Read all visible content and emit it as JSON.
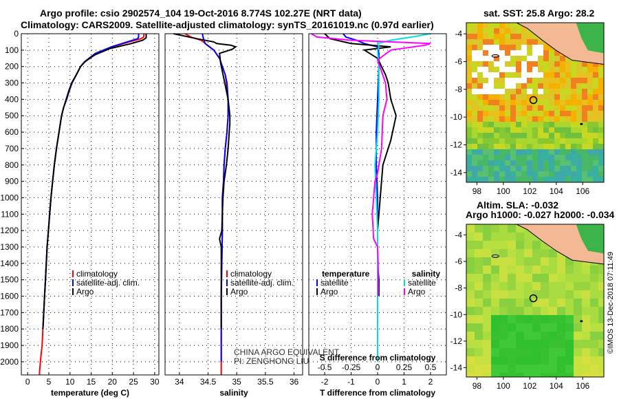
{
  "header": {
    "title_line1": "Argo profile: csio 2902574_104 19-Oct-2016 8.774S 102.27E (NRT data)",
    "title_line2": "Climatology: CARS2009. Satellite-adjusted climatology: synTS_20161019.nc (0.97d earlier)"
  },
  "colors": {
    "climatology": "#ff0000",
    "satellite": "#0000ff",
    "argo": "#000000",
    "satellite_salinity": "#00e0e0",
    "argo_salinity": "#ff00ff",
    "land": "#f2b994",
    "grid": "#000000"
  },
  "chart_data": [
    {
      "type": "line",
      "panel": "temperature",
      "xlabel": "temperature (deg C)",
      "ylabel": "",
      "xlim": [
        -1.5,
        31
      ],
      "ylim": [
        2080,
        0
      ],
      "xticks": [
        0,
        5,
        10,
        15,
        20,
        25,
        30
      ],
      "yticks": [
        0,
        100,
        200,
        300,
        400,
        500,
        600,
        700,
        800,
        900,
        1000,
        1100,
        1200,
        1300,
        1400,
        1500,
        1600,
        1700,
        1800,
        1900,
        2000
      ],
      "grid": true,
      "legend_position": "center-right",
      "series": [
        {
          "name": "climatology",
          "color": "#ff0000",
          "x": [
            27.5,
            27.4,
            26.8,
            24.0,
            20.0,
            16.0,
            13.5,
            12.5,
            11.5,
            10.5,
            9.8,
            9.2,
            8.5,
            8.0,
            7.4,
            6.8,
            6.3,
            5.9,
            5.5,
            5.2,
            4.9,
            4.6,
            4.4,
            4.2,
            4.0,
            3.8,
            3.6,
            3.4,
            3.2,
            3.0,
            2.9,
            2.8,
            2.8
          ],
          "y": [
            0,
            20,
            30,
            50,
            80,
            120,
            170,
            200,
            250,
            300,
            350,
            400,
            450,
            500,
            600,
            700,
            800,
            900,
            1000,
            1100,
            1200,
            1300,
            1400,
            1500,
            1600,
            1700,
            1800,
            1900,
            1950,
            2000,
            2030,
            2060,
            2080
          ]
        },
        {
          "name": "satellite-adj. clim.",
          "color": "#0000ff",
          "x": [
            26.2,
            26.2,
            26.0,
            23.5,
            19.8,
            16.0,
            13.5,
            12.5,
            11.5,
            10.5,
            9.8,
            9.2,
            8.5,
            8.0,
            7.4,
            6.8,
            6.3,
            5.9,
            5.5,
            5.2,
            4.9,
            4.6,
            4.4,
            4.2,
            4.0,
            3.8,
            3.6
          ],
          "y": [
            0,
            20,
            30,
            50,
            80,
            120,
            170,
            200,
            250,
            300,
            350,
            400,
            450,
            500,
            600,
            700,
            800,
            900,
            1000,
            1100,
            1200,
            1300,
            1400,
            1500,
            1600,
            1700,
            1800
          ]
        },
        {
          "name": "Argo",
          "color": "#000000",
          "x": [
            28.0,
            28.0,
            27.2,
            24.5,
            19.5,
            15.8,
            13.6,
            12.5,
            11.5,
            10.4,
            9.7,
            9.1,
            8.5,
            8.0,
            7.4,
            6.8,
            6.3,
            5.9,
            5.5,
            5.2,
            4.9,
            4.6,
            4.4,
            4.2,
            4.0,
            3.8,
            3.6
          ],
          "y": [
            0,
            25,
            40,
            60,
            90,
            130,
            170,
            200,
            250,
            300,
            350,
            400,
            450,
            500,
            600,
            700,
            800,
            900,
            1000,
            1100,
            1200,
            1300,
            1400,
            1500,
            1600,
            1700,
            1800
          ]
        }
      ]
    },
    {
      "type": "line",
      "panel": "salinity",
      "xlabel": "salinity",
      "ylabel": "",
      "xlim": [
        33.75,
        36.15
      ],
      "ylim": [
        2080,
        0
      ],
      "xticks": [
        34,
        34.5,
        35,
        35.5,
        36
      ],
      "yticks": [
        0,
        100,
        200,
        300,
        400,
        500,
        600,
        700,
        800,
        900,
        1000,
        1100,
        1200,
        1300,
        1400,
        1500,
        1600,
        1700,
        1800,
        1900,
        2000
      ],
      "grid": true,
      "legend_position": "center-right",
      "annotations": [
        "CHINA ARGO EQUIVALENT",
        "PI: ZENGHONG LIU"
      ],
      "series": [
        {
          "name": "climatology",
          "color": "#ff0000",
          "x": [
            34.1,
            34.2,
            34.38,
            34.6,
            34.7,
            34.75,
            34.8,
            34.82,
            34.85,
            34.85,
            34.83,
            34.8,
            34.78,
            34.77,
            34.75,
            34.75,
            34.74,
            34.73,
            34.73,
            34.73,
            34.73,
            34.73
          ],
          "y": [
            0,
            20,
            40,
            100,
            150,
            200,
            250,
            300,
            400,
            500,
            600,
            700,
            800,
            900,
            1000,
            1200,
            1400,
            1600,
            1800,
            1900,
            2000,
            2080
          ]
        },
        {
          "name": "satellite-adj. clim.",
          "color": "#0000ff",
          "x": [
            34.4,
            34.42,
            34.45,
            34.6,
            34.7,
            34.75,
            34.8,
            34.83,
            34.85,
            34.85,
            34.83,
            34.8,
            34.78,
            34.77,
            34.75,
            34.75,
            34.74,
            34.73,
            34.73,
            34.73,
            34.73
          ],
          "y": [
            0,
            30,
            60,
            100,
            150,
            200,
            250,
            300,
            400,
            500,
            600,
            700,
            800,
            900,
            1000,
            1200,
            1400,
            1600,
            1800,
            1900,
            2000
          ]
        },
        {
          "name": "Argo",
          "color": "#000000",
          "x": [
            33.9,
            34.3,
            34.6,
            34.65,
            34.9,
            34.98,
            34.92,
            34.7,
            34.72,
            34.78,
            34.85,
            34.88,
            34.88,
            34.87,
            34.85,
            34.82,
            34.78,
            34.76,
            34.75,
            34.74,
            34.7,
            34.73,
            34.73,
            34.73
          ],
          "y": [
            0,
            30,
            50,
            60,
            70,
            80,
            95,
            120,
            180,
            280,
            400,
            500,
            550,
            600,
            700,
            800,
            900,
            1000,
            1100,
            1200,
            1250,
            1300,
            1400,
            1800
          ]
        }
      ]
    },
    {
      "type": "line",
      "panel": "difference",
      "xlabel": "T difference from climatology",
      "xlabel_top": "S difference from climatology",
      "ylabel": "",
      "xlim": [
        -2.6,
        2.6
      ],
      "ylim": [
        2080,
        0
      ],
      "xticks": [
        -2,
        -1,
        0,
        1,
        2
      ],
      "xticks_S": [
        -0.5,
        -0.25,
        0,
        0.25,
        0.5
      ],
      "grid": true,
      "legend_position": "center",
      "legend_titles": [
        "temperature",
        "salinity"
      ],
      "series": [
        {
          "name": "temperature satellite",
          "color": "#0000ff",
          "x": [
            -1.3,
            -1.2,
            -0.8,
            -0.5,
            0.0,
            0.05,
            0.05,
            0.0,
            -0.05,
            -0.05,
            0.0,
            0.0,
            0.0,
            0.0,
            0.0
          ],
          "y": [
            0,
            20,
            40,
            60,
            80,
            120,
            200,
            400,
            600,
            800,
            1000,
            1200,
            1400,
            1600,
            1800
          ]
        },
        {
          "name": "temperature Argo",
          "color": "#000000",
          "x": [
            -2.0,
            -1.8,
            -1.0,
            0.5,
            -0.5,
            0.0,
            0.3,
            0.4,
            0.5,
            0.7,
            0.5,
            0.2,
            0.1,
            0.0,
            0.0,
            0.05,
            0.05
          ],
          "y": [
            0,
            30,
            60,
            80,
            100,
            150,
            250,
            300,
            400,
            500,
            650,
            800,
            1000,
            1200,
            1400,
            1500,
            1600
          ]
        },
        {
          "name": "salinity satellite",
          "color": "#00e0e0",
          "x": [
            2.0,
            1.3,
            0.5,
            0.0,
            0.05,
            0.0,
            0.05,
            0.05,
            0.0,
            -0.1,
            -0.05,
            0.0,
            0.0,
            0.0,
            0.0,
            0.0
          ],
          "y": [
            0,
            20,
            40,
            60,
            80,
            100,
            200,
            400,
            600,
            800,
            1000,
            1200,
            1400,
            1600,
            1800,
            2000
          ]
        },
        {
          "name": "salinity Argo",
          "color": "#ff00ff",
          "x": [
            -2.5,
            -2.3,
            -1.0,
            2.0,
            1.8,
            0.5,
            0.0,
            0.3,
            0.35,
            0.2,
            0.15,
            0.0,
            -0.1,
            -0.2,
            -0.15,
            0.0,
            0.02,
            0.02
          ],
          "y": [
            0,
            20,
            40,
            60,
            70,
            100,
            160,
            300,
            400,
            500,
            700,
            850,
            900,
            1100,
            1250,
            1300,
            1400,
            1600
          ]
        }
      ]
    },
    {
      "type": "heatmap",
      "panel": "sst_map",
      "title": "sat. SST: 25.8 Argo: 28.2",
      "x_ticks": [
        98,
        100,
        102,
        104,
        106
      ],
      "y_ticks": [
        -4,
        -6,
        -8,
        -10,
        -12,
        -14
      ],
      "xlim": [
        97.2,
        107.6
      ],
      "ylim": [
        -14.7,
        -3.2
      ],
      "argo_position": {
        "lon": 102.27,
        "lat": -8.774
      },
      "color_range": "green (cool) to orange/red (warm)",
      "missing_values": "white"
    },
    {
      "type": "heatmap",
      "panel": "sla_map",
      "title": "Altim. SLA: -0.032",
      "subtitle": "Argo h1000: -0.027 h2000: -0.034",
      "x_ticks": [
        98,
        100,
        102,
        104,
        106
      ],
      "y_ticks": [
        -4,
        -6,
        -8,
        -10,
        -12,
        -14
      ],
      "xlim": [
        97.2,
        107.6
      ],
      "ylim": [
        -14.7,
        -3.2
      ],
      "argo_position": {
        "lon": 102.27,
        "lat": -8.774
      },
      "color_range": "green (low) to yellow (high)"
    }
  ],
  "legends": {
    "temperature": [
      "climatology",
      "satellite-adj. clim.",
      "Argo"
    ],
    "salinity": [
      "climatology",
      "satellite-adj. clim.",
      "Argo"
    ],
    "difference_temperature_title": "temperature",
    "difference_temperature": [
      "satellite",
      "Argo"
    ],
    "difference_salinity_title": "salinity",
    "difference_salinity": [
      "satellite",
      "Argo"
    ]
  },
  "credit": "©IMOS 13-Dec-2018 07:11:49"
}
